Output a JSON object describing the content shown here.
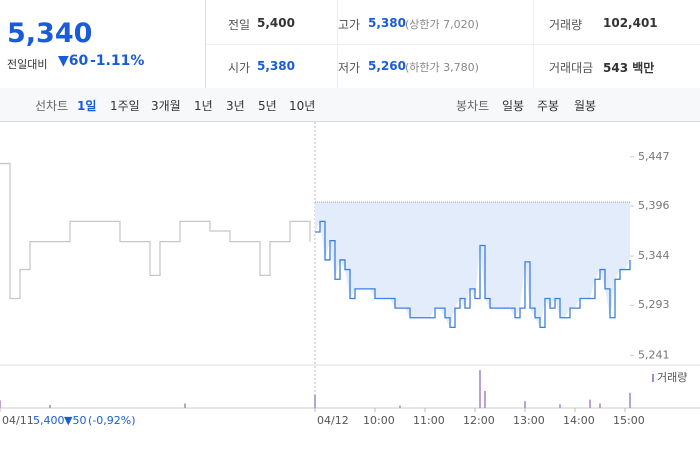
{
  "header": {
    "price": "5,340",
    "change_label": "전일대비",
    "change": "▼60",
    "change_rate": "-1.11%",
    "stats": [
      {
        "label": "전일",
        "value": "5,400"
      },
      {
        "label": "고가",
        "value": "5,380",
        "note": "(상한가 7,020)"
      },
      {
        "label": "거래량",
        "value": "102,401"
      },
      {
        "label": "시가",
        "value": "5,380"
      },
      {
        "label": "저가",
        "value": "5,260",
        "note": "(하한가 3,780)"
      },
      {
        "label": "거래대금",
        "value": "543 백만"
      }
    ]
  },
  "toolbar": {
    "line_label": "선차트",
    "line_periods": [
      "1일",
      "1주일",
      "3개월",
      "1년",
      "3년",
      "5년",
      "10년"
    ],
    "candle_label": "봉차트",
    "candle_periods": [
      "일봉",
      "주봉",
      "월봉"
    ]
  },
  "chart_data": {
    "type": "line",
    "base": 5400,
    "xlim": [
      0,
      126
    ],
    "ylim": [
      5231,
      5480
    ],
    "xticks": [
      {
        "value": 0,
        "label": "04/11"
      },
      {
        "value": 63,
        "label": "04/12"
      },
      {
        "value": 75,
        "label": "10:00"
      },
      {
        "value": 85,
        "label": "11:00"
      },
      {
        "value": 95,
        "label": "12:00"
      },
      {
        "value": 105,
        "label": "13:00"
      },
      {
        "value": 115,
        "label": "14:00"
      },
      {
        "value": 125,
        "label": "15:00"
      }
    ],
    "yticks": [
      {
        "value": 5447,
        "label": "5,447"
      },
      {
        "value": 5396,
        "label": "5,396"
      },
      {
        "value": 5344,
        "label": "5,344"
      },
      {
        "value": 5293,
        "label": "5,293"
      },
      {
        "value": 5241,
        "label": "5,241"
      }
    ],
    "prev_summary": [
      "5,400",
      "▼50",
      "(-0,92%)"
    ],
    "series": [
      {
        "color": "#c8c8c8",
        "x": [
          0,
          2,
          4,
          6,
          8,
          10,
          12,
          14,
          16,
          18,
          20,
          22,
          24,
          26,
          28,
          30,
          32,
          34,
          36,
          38,
          40,
          42,
          44,
          46,
          48,
          50,
          52,
          54,
          56,
          58,
          60,
          62
        ],
        "values": [
          5440,
          5300,
          5330,
          5359,
          5359,
          5359,
          5359,
          5380,
          5380,
          5380,
          5380,
          5380,
          5359,
          5359,
          5359,
          5324,
          5359,
          5359,
          5380,
          5380,
          5380,
          5370,
          5370,
          5359,
          5359,
          5359,
          5324,
          5359,
          5359,
          5380,
          5380,
          5359
        ]
      },
      {
        "color": "#3d7fe0",
        "fill": "#e3ecfa",
        "x": [
          63,
          64,
          65,
          66,
          67,
          68,
          69,
          70,
          71,
          72,
          73,
          74,
          75,
          76,
          77,
          78,
          79,
          80,
          81,
          82,
          83,
          84,
          85,
          86,
          87,
          88,
          89,
          90,
          91,
          92,
          93,
          94,
          95,
          96,
          97,
          98,
          99,
          100,
          101,
          102,
          103,
          104,
          105,
          106,
          107,
          108,
          109,
          110,
          111,
          112,
          113,
          114,
          115,
          116,
          117,
          118,
          119,
          120,
          121,
          122,
          123,
          124,
          125,
          126
        ],
        "values": [
          5369,
          5380,
          5340,
          5360,
          5320,
          5340,
          5330,
          5300,
          5310,
          5310,
          5310,
          5310,
          5300,
          5300,
          5300,
          5300,
          5290,
          5290,
          5290,
          5280,
          5280,
          5280,
          5280,
          5280,
          5290,
          5290,
          5280,
          5270,
          5290,
          5300,
          5290,
          5310,
          5300,
          5355,
          5300,
          5290,
          5290,
          5290,
          5290,
          5290,
          5280,
          5290,
          5338,
          5290,
          5280,
          5270,
          5300,
          5290,
          5300,
          5280,
          5280,
          5290,
          5290,
          5300,
          5300,
          5300,
          5320,
          5330,
          5310,
          5280,
          5320,
          5330,
          5330,
          5340
        ]
      }
    ],
    "volume": {
      "name": "거래량",
      "color": "#a98ad0",
      "vlim": [
        0,
        100
      ],
      "x": [
        0,
        10,
        37,
        63,
        80,
        96,
        97,
        105,
        112,
        118,
        120,
        126
      ],
      "values": [
        20,
        8,
        12,
        35,
        6,
        100,
        45,
        18,
        10,
        22,
        12,
        40
      ]
    }
  }
}
